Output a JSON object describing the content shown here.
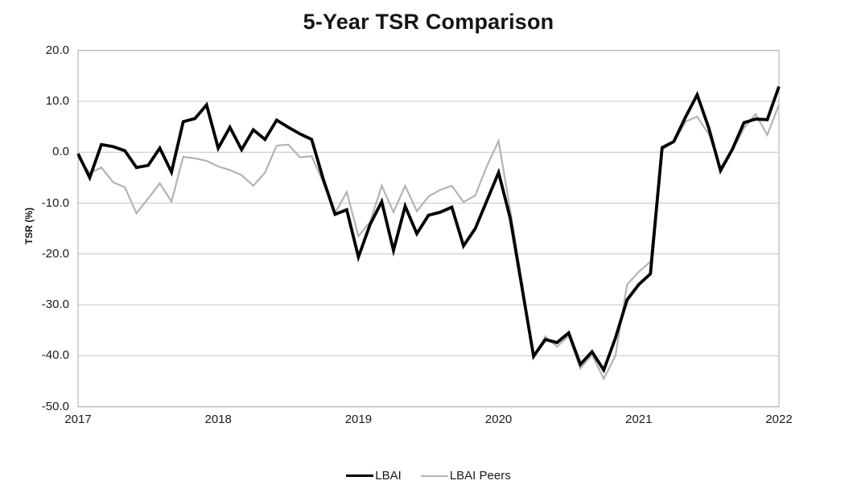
{
  "title": "5-Year TSR Comparison",
  "colors": {
    "lbai_line": "#000000",
    "peers_line": "#b3b3b3",
    "gridline": "#c3c3c3",
    "plot_border": "#ababab",
    "text": "#1a1a1a",
    "background": "#ffffff"
  },
  "chart_data": {
    "type": "line",
    "title": "5-Year TSR Comparison",
    "xlabel": "",
    "ylabel": "TSR (%)",
    "frequency": "monthly",
    "points_per_series": 61,
    "x_tick_labels": [
      "2017",
      "2018",
      "2019",
      "2020",
      "2021",
      "2022"
    ],
    "y_ticks": [
      20,
      10,
      0,
      -10,
      -20,
      -30,
      -40,
      -50
    ],
    "y_tick_labels": [
      "20.0",
      "10.0",
      "0.0",
      "-10.0",
      "-20.0",
      "-30.0",
      "-40.0",
      "-50.0"
    ],
    "ylim": [
      -50,
      20
    ],
    "grid": "horizontal",
    "legend_position": "bottom",
    "series": [
      {
        "name": "LBAI",
        "color": "#000000",
        "line_width": 3.8,
        "values": [
          -0.3,
          -5.0,
          1.5,
          1.1,
          0.3,
          -3.0,
          -2.6,
          0.8,
          -3.9,
          6.0,
          6.6,
          9.3,
          0.8,
          4.9,
          0.5,
          4.4,
          2.5,
          6.3,
          4.9,
          3.6,
          2.5,
          -5.4,
          -12.2,
          -11.3,
          -20.6,
          -14.2,
          -9.7,
          -19.3,
          -10.6,
          -16.0,
          -12.4,
          -11.8,
          -10.8,
          -18.4,
          -15.0,
          -9.5,
          -4.0,
          -13.0,
          -26.5,
          -40.1,
          -36.8,
          -37.4,
          -35.5,
          -41.7,
          -39.2,
          -42.8,
          -36.5,
          -29.0,
          -26.0,
          -23.9,
          0.9,
          2.1,
          6.9,
          11.3,
          4.7,
          -3.6,
          0.5,
          5.8,
          6.5,
          6.4,
          12.9
        ]
      },
      {
        "name": "LBAI Peers",
        "color": "#b3b3b3",
        "line_width": 2.2,
        "values": [
          -1.0,
          -4.1,
          -3.0,
          -5.9,
          -6.9,
          -12.0,
          -9.1,
          -6.1,
          -9.7,
          -0.9,
          -1.2,
          -1.7,
          -2.8,
          -3.5,
          -4.5,
          -6.6,
          -4.0,
          1.3,
          1.5,
          -1.0,
          -0.8,
          -6.0,
          -12.0,
          -7.8,
          -16.5,
          -13.7,
          -6.6,
          -11.8,
          -6.6,
          -11.6,
          -8.7,
          -7.4,
          -6.6,
          -9.8,
          -8.5,
          -2.7,
          2.2,
          -11.4,
          -25.5,
          -40.4,
          -36.2,
          -38.2,
          -36.1,
          -42.5,
          -39.8,
          -44.5,
          -40.0,
          -26.0,
          -23.5,
          -21.5,
          0.5,
          2.0,
          6.0,
          7.0,
          3.5,
          -3.0,
          0.3,
          4.7,
          7.5,
          3.4,
          9.3
        ]
      }
    ]
  }
}
